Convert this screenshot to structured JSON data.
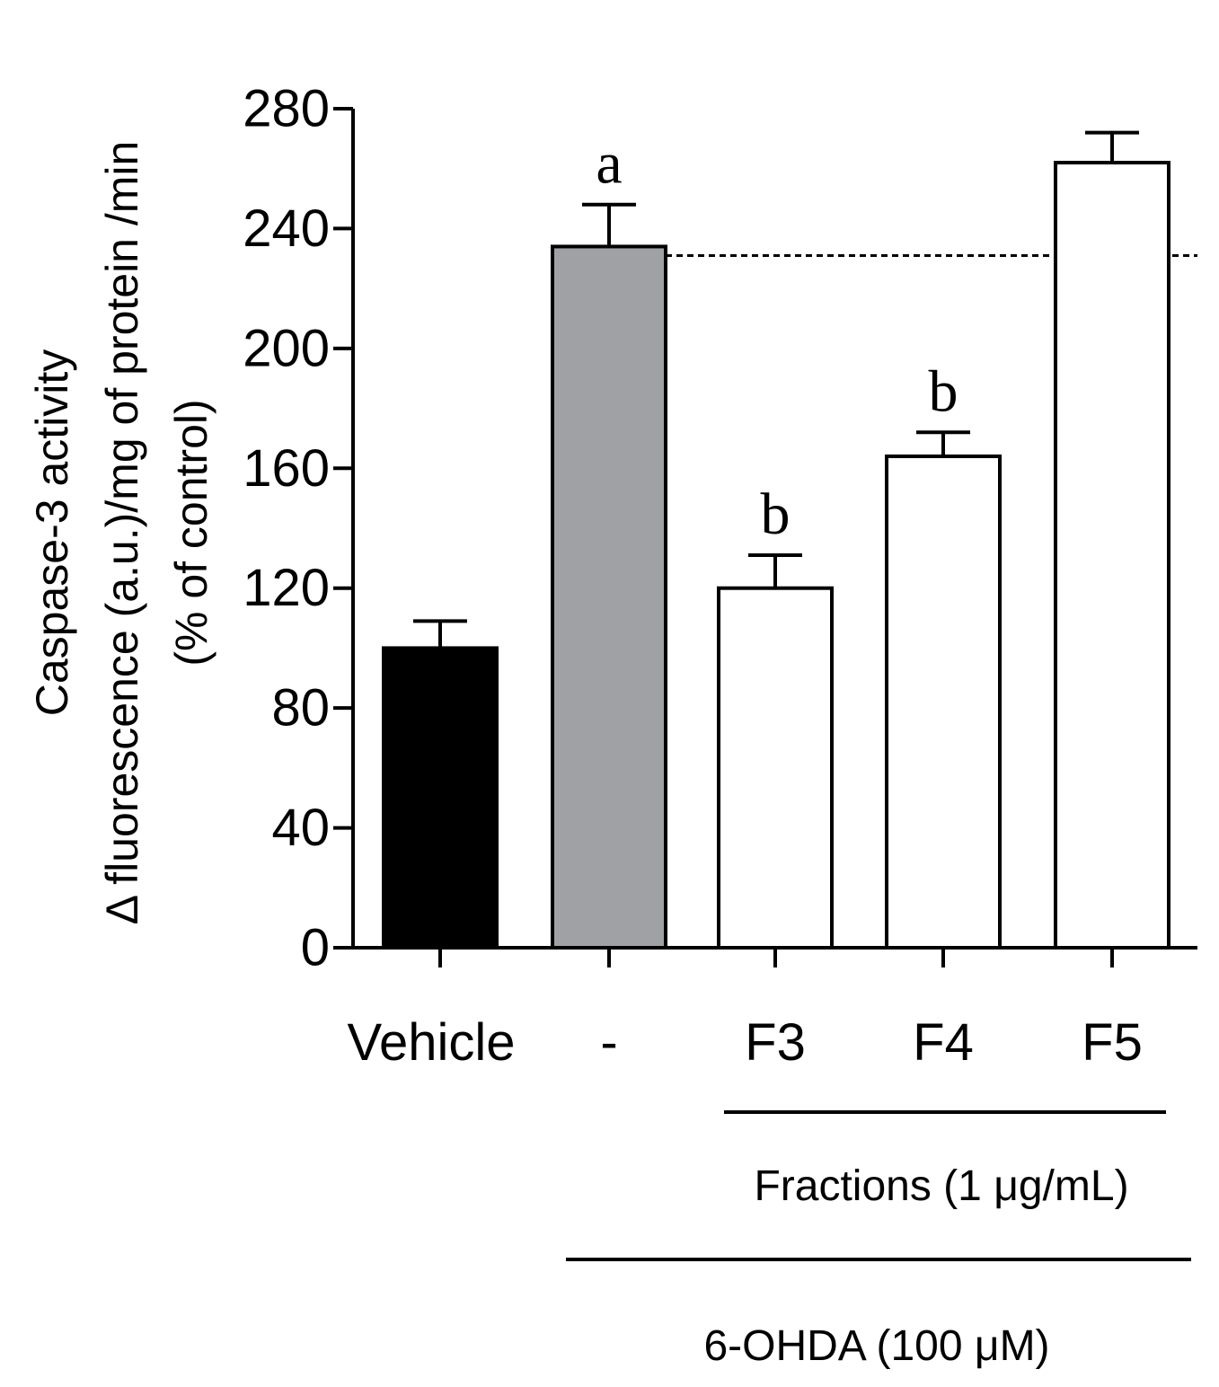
{
  "chart_data": {
    "type": "bar",
    "ylabel_lines": [
      "Caspase-3 activity",
      "Δ fluorescence (a.u.)/mg of protein /min",
      "(% of control)"
    ],
    "categories": [
      "Vehicle",
      "-",
      "F3",
      "F4",
      "F5"
    ],
    "values": [
      100,
      234,
      120,
      164,
      262
    ],
    "errors": [
      9,
      14,
      11,
      8,
      10
    ],
    "colors": [
      "#000000",
      "#a0a1a5",
      "#ffffff",
      "#ffffff",
      "#ffffff"
    ],
    "significance": [
      "",
      "a",
      "b",
      "b",
      ""
    ],
    "ylim": [
      0,
      280
    ],
    "yticks": [
      0,
      40,
      80,
      120,
      160,
      200,
      240,
      280
    ],
    "reference_line": 231,
    "groups": [
      {
        "label": "Fractions (1 μg/mL)",
        "from": 2,
        "to": 4
      },
      {
        "label": "6-OHDA (100 μM)",
        "from": 1,
        "to": 4
      }
    ]
  }
}
